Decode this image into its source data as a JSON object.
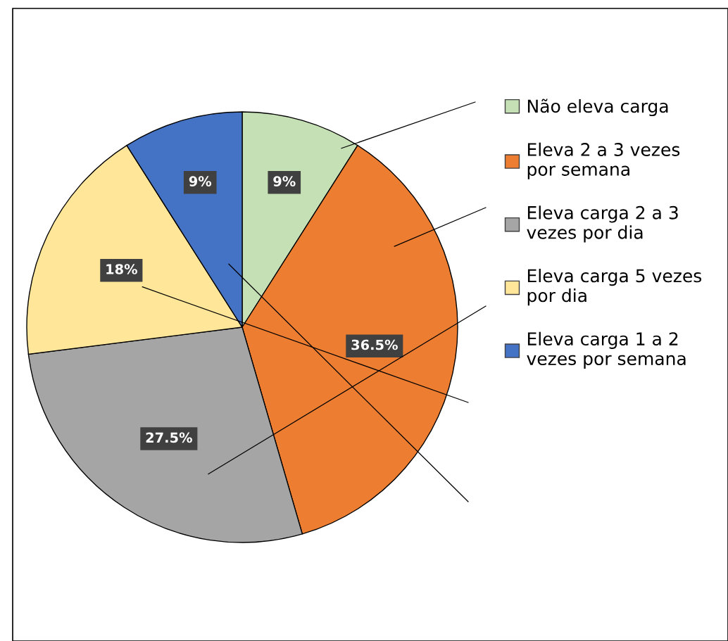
{
  "chart_data": {
    "type": "pie",
    "categories": [
      "Não eleva carga",
      "Eleva 2 a 3 vezes\npor semana",
      "Eleva carga 2 a 3\nvezes por dia",
      "Eleva carga 5 vezes\npor dia",
      "Eleva carga 1 a 2\nvezes por semana"
    ],
    "values": [
      9,
      36.5,
      27.5,
      18,
      9
    ],
    "colors": [
      "#c5e0b4",
      "#ed7d31",
      "#a5a5a5",
      "#ffe699",
      "#4472c4"
    ],
    "value_labels": [
      "9%",
      "36.5%",
      "27.5%",
      "18%",
      "9%"
    ],
    "legend": "right"
  }
}
